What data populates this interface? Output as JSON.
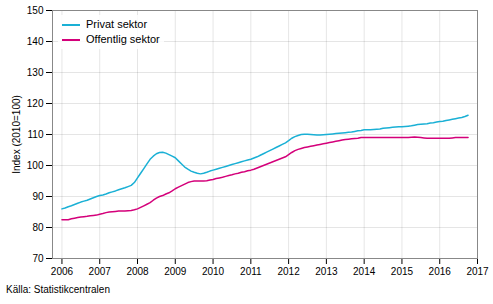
{
  "chart_data": {
    "type": "line",
    "ylabel": "Index (2010=100)",
    "annotations": [
      "Källa: Statistikcentralen"
    ],
    "x": [
      2006.0,
      2006.083,
      2006.167,
      2006.25,
      2006.333,
      2006.417,
      2006.5,
      2006.583,
      2006.667,
      2006.75,
      2006.833,
      2006.917,
      2007.0,
      2007.083,
      2007.167,
      2007.25,
      2007.333,
      2007.417,
      2007.5,
      2007.583,
      2007.667,
      2007.75,
      2007.833,
      2007.917,
      2008.0,
      2008.083,
      2008.167,
      2008.25,
      2008.333,
      2008.417,
      2008.5,
      2008.583,
      2008.667,
      2008.75,
      2008.833,
      2008.917,
      2009.0,
      2009.083,
      2009.167,
      2009.25,
      2009.333,
      2009.417,
      2009.5,
      2009.583,
      2009.667,
      2009.75,
      2009.833,
      2009.917,
      2010.0,
      2010.083,
      2010.167,
      2010.25,
      2010.333,
      2010.417,
      2010.5,
      2010.583,
      2010.667,
      2010.75,
      2010.833,
      2010.917,
      2011.0,
      2011.083,
      2011.167,
      2011.25,
      2011.333,
      2011.417,
      2011.5,
      2011.583,
      2011.667,
      2011.75,
      2011.833,
      2011.917,
      2012.0,
      2012.083,
      2012.167,
      2012.25,
      2012.333,
      2012.417,
      2012.5,
      2012.583,
      2012.667,
      2012.75,
      2012.833,
      2012.917,
      2013.0,
      2013.083,
      2013.167,
      2013.25,
      2013.333,
      2013.417,
      2013.5,
      2013.583,
      2013.667,
      2013.75,
      2013.833,
      2013.917,
      2014.0,
      2014.083,
      2014.167,
      2014.25,
      2014.333,
      2014.417,
      2014.5,
      2014.583,
      2014.667,
      2014.75,
      2014.833,
      2014.917,
      2015.0,
      2015.083,
      2015.167,
      2015.25,
      2015.333,
      2015.417,
      2015.5,
      2015.583,
      2015.667,
      2015.75,
      2015.833,
      2015.917,
      2016.0,
      2016.083,
      2016.167,
      2016.25,
      2016.333,
      2016.417,
      2016.5,
      2016.583,
      2016.667,
      2016.75
    ],
    "series": [
      {
        "name": "Privat sektor",
        "color": "#1ab0d5",
        "values": [
          86.0,
          86.3,
          86.7,
          87.0,
          87.4,
          87.8,
          88.2,
          88.5,
          88.8,
          89.2,
          89.6,
          90.0,
          90.3,
          90.5,
          90.8,
          91.2,
          91.5,
          91.8,
          92.2,
          92.5,
          92.8,
          93.2,
          93.6,
          94.5,
          96.0,
          97.5,
          99.0,
          100.5,
          102.0,
          103.0,
          103.8,
          104.2,
          104.3,
          104.0,
          103.5,
          103.0,
          102.5,
          101.5,
          100.5,
          99.5,
          98.8,
          98.2,
          97.8,
          97.5,
          97.3,
          97.5,
          97.8,
          98.2,
          98.5,
          98.8,
          99.1,
          99.4,
          99.7,
          100.0,
          100.3,
          100.6,
          100.9,
          101.2,
          101.5,
          101.8,
          102.0,
          102.4,
          102.8,
          103.3,
          103.8,
          104.3,
          104.8,
          105.3,
          105.8,
          106.3,
          106.8,
          107.3,
          108.0,
          108.8,
          109.3,
          109.7,
          110.0,
          110.1,
          110.1,
          110.0,
          109.9,
          109.8,
          109.8,
          109.9,
          110.0,
          110.1,
          110.2,
          110.3,
          110.4,
          110.5,
          110.6,
          110.7,
          110.8,
          111.0,
          111.2,
          111.3,
          111.5,
          111.5,
          111.5,
          111.6,
          111.7,
          111.8,
          112.0,
          112.1,
          112.2,
          112.3,
          112.4,
          112.5,
          112.5,
          112.6,
          112.7,
          112.8,
          113.0,
          113.2,
          113.3,
          113.4,
          113.5,
          113.7,
          113.8,
          114.0,
          114.2,
          114.3,
          114.5,
          114.7,
          114.9,
          115.1,
          115.3,
          115.5,
          115.8,
          116.2
        ]
      },
      {
        "name": "Offentlig sektor",
        "color": "#d4007a",
        "values": [
          82.5,
          82.5,
          82.5,
          82.8,
          83.0,
          83.2,
          83.4,
          83.5,
          83.6,
          83.8,
          83.9,
          84.0,
          84.3,
          84.5,
          84.8,
          85.0,
          85.1,
          85.2,
          85.3,
          85.3,
          85.3,
          85.4,
          85.5,
          85.7,
          86.0,
          86.5,
          87.0,
          87.5,
          88.0,
          88.8,
          89.5,
          90.0,
          90.3,
          90.8,
          91.2,
          91.8,
          92.5,
          93.0,
          93.5,
          94.0,
          94.5,
          94.8,
          95.0,
          95.0,
          95.0,
          95.0,
          95.1,
          95.3,
          95.5,
          95.8,
          96.0,
          96.2,
          96.5,
          96.8,
          97.0,
          97.3,
          97.5,
          97.8,
          98.0,
          98.3,
          98.5,
          98.8,
          99.2,
          99.6,
          100.0,
          100.4,
          100.8,
          101.2,
          101.6,
          102.0,
          102.4,
          102.8,
          103.5,
          104.2,
          104.8,
          105.2,
          105.5,
          105.8,
          106.0,
          106.2,
          106.4,
          106.6,
          106.8,
          107.0,
          107.2,
          107.4,
          107.6,
          107.8,
          108.0,
          108.2,
          108.4,
          108.5,
          108.6,
          108.7,
          108.8,
          109.0,
          109.0,
          109.0,
          109.0,
          109.0,
          109.0,
          109.0,
          109.0,
          109.0,
          109.0,
          109.0,
          109.0,
          109.0,
          109.0,
          109.0,
          109.0,
          109.1,
          109.2,
          109.1,
          109.0,
          108.9,
          108.8,
          108.8,
          108.8,
          108.8,
          108.8,
          108.8,
          108.8,
          108.8,
          108.9,
          109.0,
          109.0,
          109.0,
          109.0,
          109.0
        ]
      }
    ],
    "xlim": [
      2005.75,
      2017.0
    ],
    "xticks": [
      2006,
      2007,
      2008,
      2009,
      2010,
      2011,
      2012,
      2013,
      2014,
      2015,
      2016,
      2017
    ],
    "ylim": [
      70,
      150
    ],
    "yticks": [
      70,
      80,
      90,
      100,
      110,
      120,
      130,
      140,
      150
    ],
    "grid": true,
    "legend": "upper left"
  }
}
